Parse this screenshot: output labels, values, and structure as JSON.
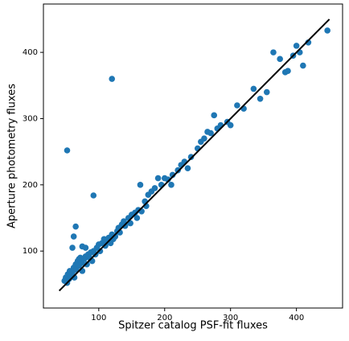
{
  "chart_data": {
    "type": "scatter",
    "xlabel": "Spitzer catalog PSF-fit fluxes",
    "ylabel": "Aperture photometry fluxes",
    "xlim": [
      16,
      470
    ],
    "ylim": [
      14,
      473
    ],
    "xticks": [
      100,
      200,
      300,
      400
    ],
    "yticks": [
      100,
      200,
      300,
      400
    ],
    "points": {
      "color": "#1f77b4",
      "x": [
        48,
        50,
        52,
        53,
        55,
        56,
        58,
        60,
        62,
        63,
        65,
        66,
        68,
        70,
        72,
        74,
        75,
        78,
        80,
        82,
        84,
        86,
        88,
        90,
        92,
        95,
        97,
        100,
        102,
        105,
        108,
        110,
        112,
        115,
        118,
        120,
        122,
        125,
        128,
        130,
        132,
        135,
        138,
        140,
        145,
        148,
        150,
        155,
        158,
        160,
        163,
        165,
        170,
        172,
        175,
        180,
        185,
        190,
        195,
        200,
        205,
        210,
        212,
        220,
        225,
        230,
        235,
        240,
        250,
        255,
        260,
        265,
        270,
        275,
        280,
        285,
        295,
        300,
        310,
        320,
        335,
        345,
        355,
        365,
        375,
        383,
        387,
        395,
        400,
        405,
        410,
        418,
        447,
        52,
        92,
        120,
        65,
        62,
        75,
        80,
        60,
        70
      ],
      "y": [
        55,
        60,
        52,
        65,
        58,
        70,
        62,
        68,
        75,
        60,
        80,
        72,
        85,
        78,
        90,
        82,
        70,
        88,
        92,
        80,
        95,
        90,
        98,
        85,
        100,
        95,
        105,
        110,
        100,
        112,
        118,
        108,
        115,
        120,
        112,
        125,
        118,
        122,
        130,
        135,
        128,
        140,
        145,
        138,
        150,
        142,
        155,
        158,
        150,
        162,
        200,
        160,
        175,
        168,
        185,
        190,
        195,
        210,
        200,
        210,
        208,
        200,
        215,
        222,
        230,
        235,
        225,
        242,
        255,
        265,
        270,
        280,
        278,
        305,
        285,
        290,
        295,
        290,
        320,
        315,
        345,
        330,
        340,
        400,
        390,
        370,
        372,
        395,
        410,
        400,
        380,
        415,
        433,
        252,
        184,
        360,
        137,
        122,
        107,
        105,
        105,
        88
      ]
    },
    "line": {
      "color": "#000000",
      "x": [
        40,
        450
      ],
      "y": [
        40,
        450
      ]
    }
  }
}
